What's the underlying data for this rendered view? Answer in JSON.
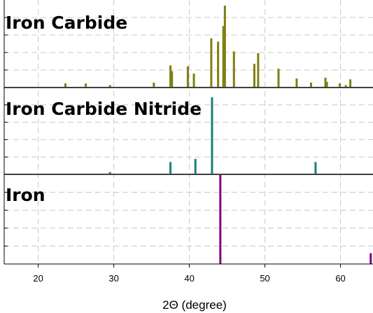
{
  "chart_data": {
    "type": "bar",
    "xlabel": "2Θ (degree)",
    "xlim": [
      15.5,
      64.3
    ],
    "xticks": [
      20,
      30,
      40,
      50,
      60
    ],
    "grid": true,
    "panels": [
      {
        "name": "Iron Carbide",
        "color": "#7f7f12",
        "ylim": [
          0,
          100
        ],
        "x": [
          23.6,
          26.3,
          29.5,
          35.3,
          37.5,
          37.7,
          39.8,
          40.6,
          42.9,
          43.8,
          44.5,
          44.7,
          45.9,
          48.6,
          49.1,
          51.8,
          54.2,
          56.1,
          58.0,
          58.2,
          59.9,
          60.7,
          61.3
        ],
        "values": [
          5,
          5,
          3,
          6,
          27,
          20,
          26,
          17,
          60,
          56,
          75,
          100,
          44,
          29,
          42,
          23,
          11,
          6,
          12,
          7,
          5,
          3,
          10
        ]
      },
      {
        "name": "Iron Carbide Nitride",
        "color": "#1a7f7f",
        "ylim": [
          0,
          100
        ],
        "x": [
          29.5,
          37.5,
          40.8,
          43.0,
          56.7
        ],
        "values": [
          3,
          16,
          20,
          100,
          16
        ]
      },
      {
        "name": "Iron",
        "color": "#800080",
        "ylim": [
          0,
          100
        ],
        "x": [
          44.1,
          64.0
        ],
        "values": [
          100,
          12
        ]
      }
    ]
  }
}
